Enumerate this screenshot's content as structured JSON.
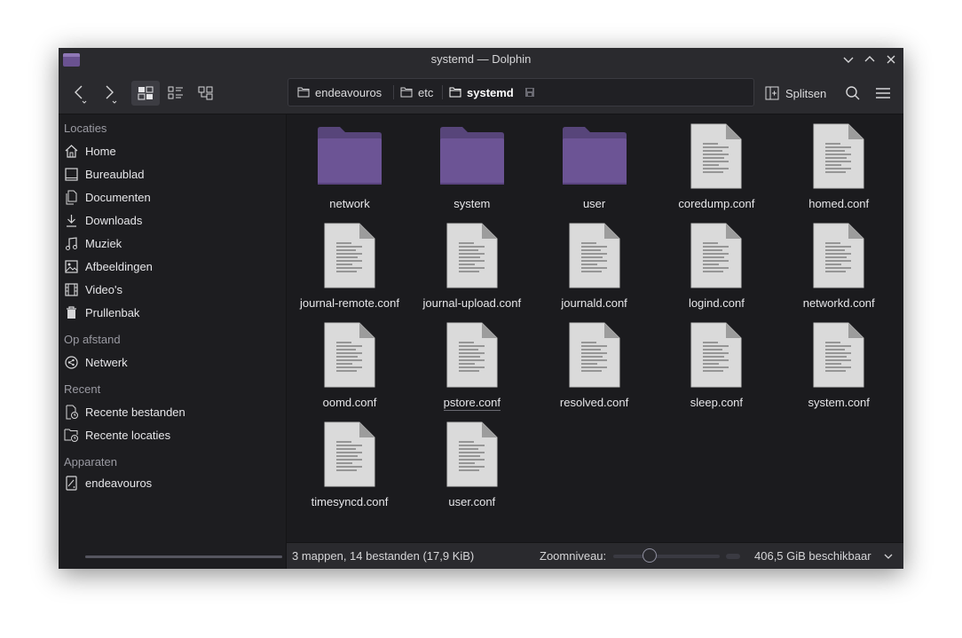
{
  "window": {
    "title": "systemd — Dolphin"
  },
  "breadcrumb": [
    {
      "label": "endeavouros"
    },
    {
      "label": "etc"
    },
    {
      "label": "systemd"
    }
  ],
  "toolbar": {
    "split_label": "Splitsen"
  },
  "sidebar": {
    "sections": [
      {
        "heading": "Locaties",
        "items": [
          {
            "label": "Home",
            "icon": "home-icon"
          },
          {
            "label": "Bureaublad",
            "icon": "desktop-icon"
          },
          {
            "label": "Documenten",
            "icon": "documents-icon"
          },
          {
            "label": "Downloads",
            "icon": "download-icon"
          },
          {
            "label": "Muziek",
            "icon": "music-icon"
          },
          {
            "label": "Afbeeldingen",
            "icon": "image-icon"
          },
          {
            "label": "Video's",
            "icon": "video-icon"
          },
          {
            "label": "Prullenbak",
            "icon": "trash-icon"
          }
        ]
      },
      {
        "heading": "Op afstand",
        "items": [
          {
            "label": "Netwerk",
            "icon": "network-icon"
          }
        ]
      },
      {
        "heading": "Recent",
        "items": [
          {
            "label": "Recente bestanden",
            "icon": "recent-files-icon"
          },
          {
            "label": "Recente locaties",
            "icon": "recent-locations-icon"
          }
        ]
      },
      {
        "heading": "Apparaten",
        "items": [
          {
            "label": "endeavouros",
            "icon": "drive-icon"
          }
        ]
      }
    ],
    "device_usage_fraction": 1.0
  },
  "files": [
    {
      "name": "network",
      "type": "folder"
    },
    {
      "name": "system",
      "type": "folder"
    },
    {
      "name": "user",
      "type": "folder"
    },
    {
      "name": "coredump.conf",
      "type": "file"
    },
    {
      "name": "homed.conf",
      "type": "file"
    },
    {
      "name": "journal-remote.conf",
      "type": "file"
    },
    {
      "name": "journal-upload.conf",
      "type": "file"
    },
    {
      "name": "journald.conf",
      "type": "file"
    },
    {
      "name": "logind.conf",
      "type": "file"
    },
    {
      "name": "networkd.conf",
      "type": "file"
    },
    {
      "name": "oomd.conf",
      "type": "file"
    },
    {
      "name": "pstore.conf",
      "type": "file",
      "hovered": true
    },
    {
      "name": "resolved.conf",
      "type": "file"
    },
    {
      "name": "sleep.conf",
      "type": "file"
    },
    {
      "name": "system.conf",
      "type": "file"
    },
    {
      "name": "timesyncd.conf",
      "type": "file"
    },
    {
      "name": "user.conf",
      "type": "file"
    }
  ],
  "statusbar": {
    "summary": "3 mappen, 14 bestanden (17,9 KiB)",
    "zoom_label": "Zoomniveau:",
    "free_space": "406,5 GiB beschikbaar"
  },
  "colors": {
    "folder": "#6c5495",
    "folder_tab": "#57457a",
    "accent": "#8f78b6"
  }
}
